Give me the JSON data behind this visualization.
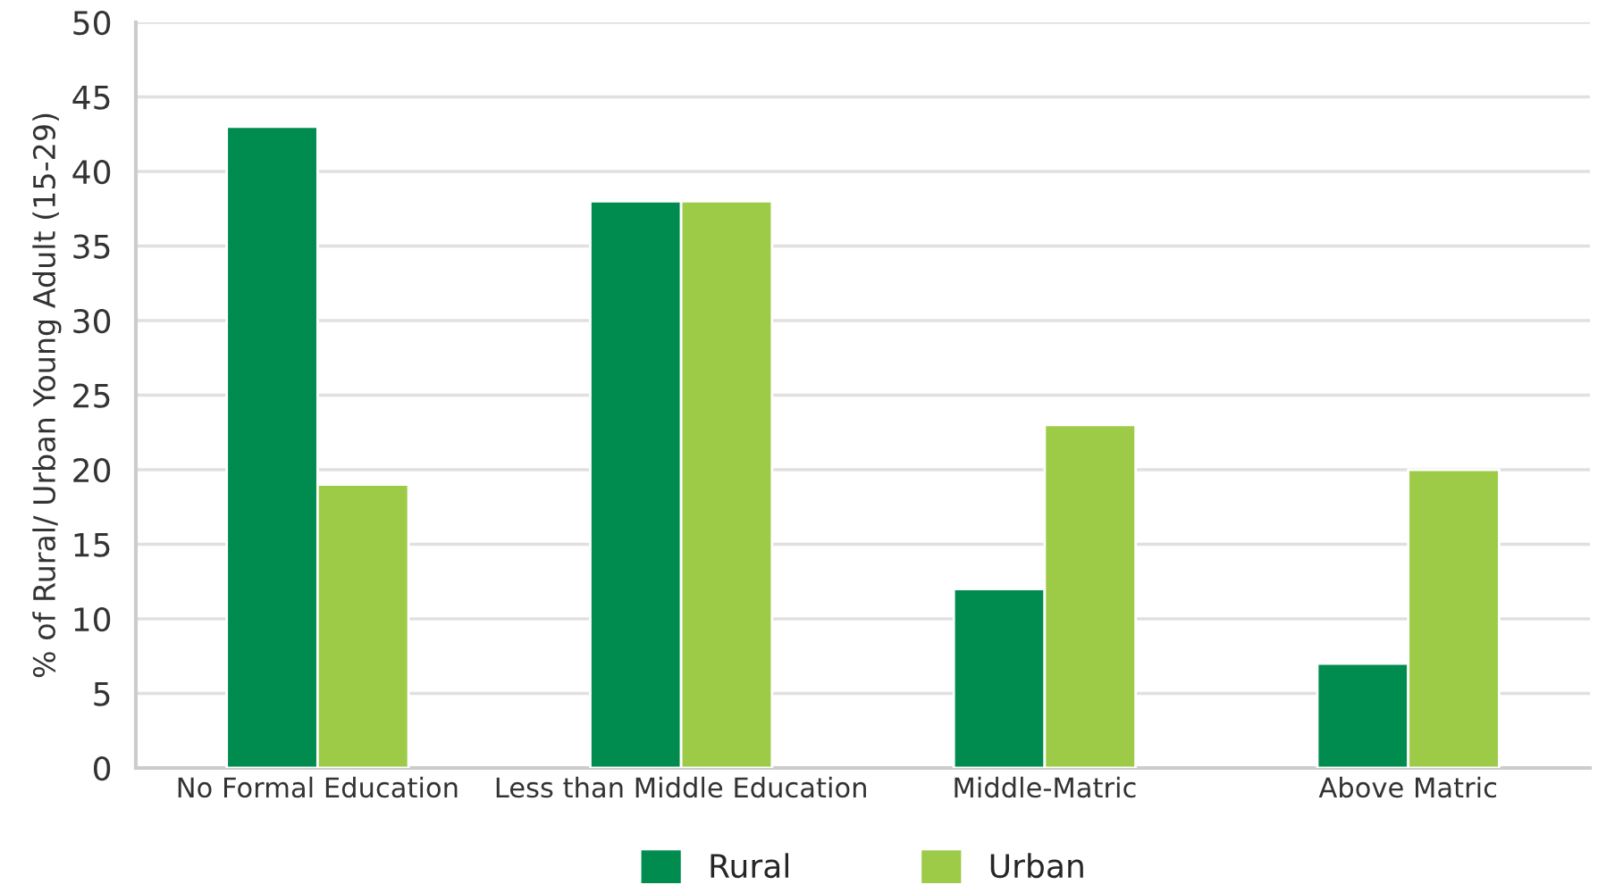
{
  "chart_data": {
    "type": "bar",
    "ylabel": "% of Rural/ Urban Young Adult (15-29)",
    "categories": [
      "No Formal Education",
      "Less than Middle Education",
      "Middle-Matric",
      "Above Matric"
    ],
    "series": [
      {
        "name": "Rural",
        "color": "#008c4e",
        "values": [
          43,
          38,
          12,
          7
        ]
      },
      {
        "name": "Urban",
        "color": "#9dcb48",
        "values": [
          19,
          38,
          23,
          20
        ]
      }
    ],
    "ylim": [
      0,
      50
    ],
    "yticks": [
      0,
      5,
      10,
      15,
      20,
      25,
      30,
      35,
      40,
      45,
      50
    ],
    "grid": "y",
    "legend": "bottom"
  }
}
